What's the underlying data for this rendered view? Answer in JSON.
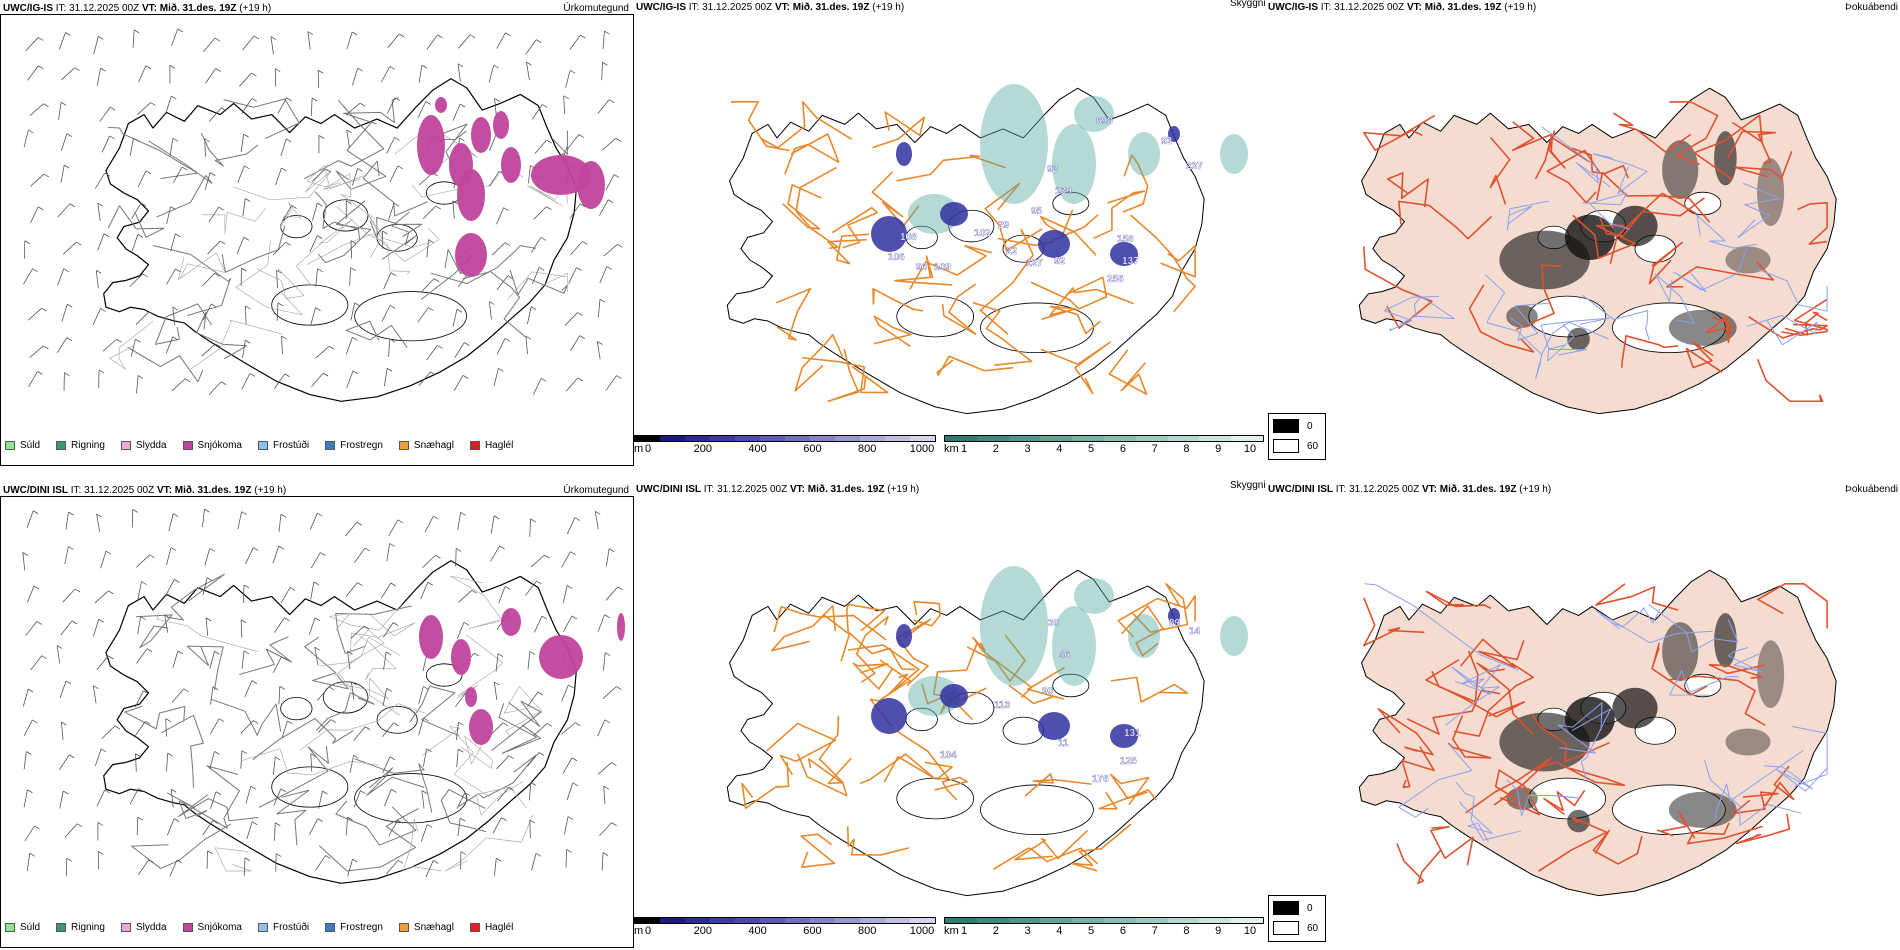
{
  "rows": [
    {
      "model": "UWC/IG-IS",
      "it_label": "IT:",
      "it_value": "31.12.2025 00Z",
      "vt_label": "VT:",
      "vt_value": "Mið. 31.des. 19Z",
      "lead": "(+19 h)"
    },
    {
      "model": "UWC/DINI ISL",
      "it_label": "IT:",
      "it_value": "31.12.2025 00Z",
      "vt_label": "VT:",
      "vt_value": "Mið. 31.des. 19Z",
      "lead": "(+19 h)"
    }
  ],
  "panel_titles": {
    "precip": "Úrkomutegund",
    "visibility": "Skyggni",
    "fog": "Þokuábendi"
  },
  "precip_legend": [
    {
      "label": "Súld",
      "color": "#8fe88f"
    },
    {
      "label": "Rigning",
      "color": "#3c9a6a"
    },
    {
      "label": "Slydda",
      "color": "#f0a8d8"
    },
    {
      "label": "Snjókoma",
      "color": "#c0449c"
    },
    {
      "label": "Frostúði",
      "color": "#90c0f0"
    },
    {
      "label": "Frostregn",
      "color": "#3c7cc0"
    },
    {
      "label": "Snæhagl",
      "color": "#f0a030"
    },
    {
      "label": "Haglél",
      "color": "#e02020"
    }
  ],
  "colorbar_m": {
    "unit": "m",
    "ticks": [
      "0",
      "200",
      "400",
      "600",
      "800",
      "1000"
    ],
    "colors": [
      "#000000",
      "#1a1a80",
      "#2a2a98",
      "#3a3aa8",
      "#4a4ab0",
      "#5c5cb8",
      "#7070c0",
      "#8484c8",
      "#9898d0",
      "#acacd8",
      "#c0c0e0",
      "#d4d4ea"
    ]
  },
  "colorbar_km": {
    "unit": "km",
    "ticks": [
      "1",
      "2",
      "3",
      "4",
      "5",
      "6",
      "7",
      "8",
      "9",
      "10"
    ],
    "colors": [
      "#2e7d72",
      "#3d8a80",
      "#4e978d",
      "#60a49a",
      "#74b1a8",
      "#88beb6",
      "#9ccbc4",
      "#b2d8d2",
      "#c8e5e0",
      "#e0f2ef"
    ]
  },
  "fog_legend": [
    {
      "value": "0",
      "color": "#000000"
    },
    {
      "value": "60",
      "color": "#ffffff"
    }
  ],
  "visibility_labels": [
    [
      "898",
      "92",
      "237",
      "92",
      "139",
      "95",
      "158",
      "137",
      "256",
      "92",
      "127",
      "22",
      "102",
      "29",
      "108",
      "106",
      "109",
      "96"
    ],
    [
      "30",
      "46",
      "89",
      "14",
      "90",
      "131",
      "125",
      "176",
      "113",
      "104",
      "11"
    ]
  ],
  "colors": {
    "snow": "#c0449c",
    "roads_orange": "#e8882a",
    "roads_red": "#e0502e",
    "land_fog": "#f4ddd0",
    "rivers": "#8aa0f0",
    "coast": "#000000",
    "teal": "#5aaaa0",
    "navy": "#3030a0"
  }
}
